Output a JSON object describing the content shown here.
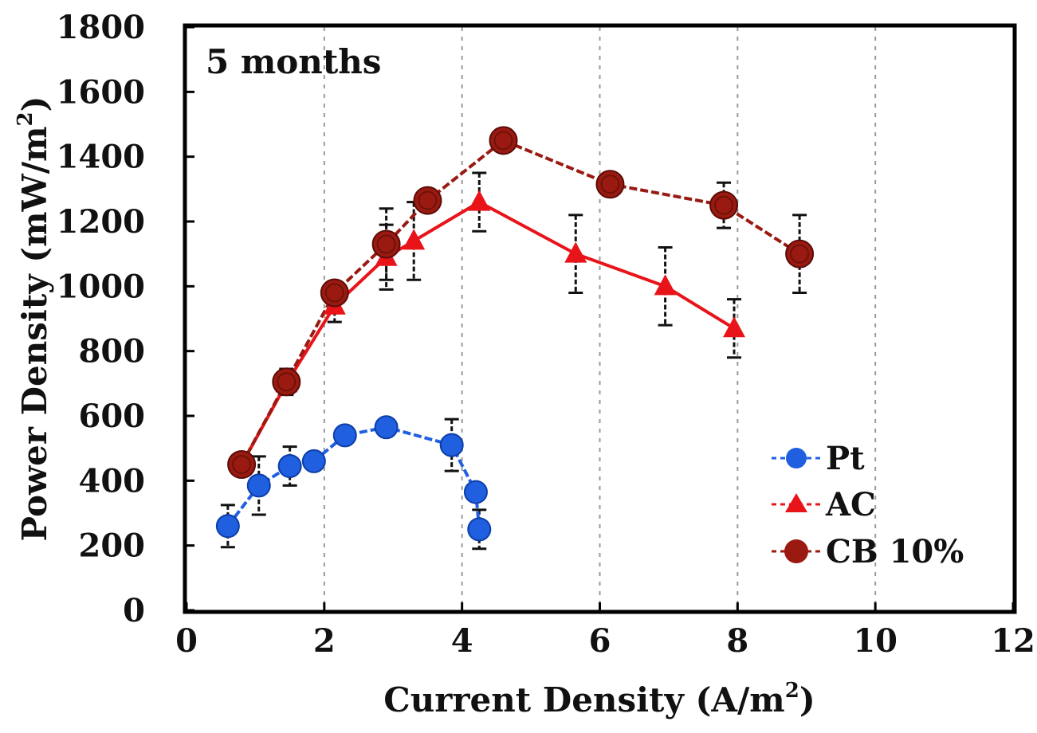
{
  "chart_data": {
    "type": "line",
    "title": "",
    "annotation": "5 months",
    "xlabel": "Current Density (A/m",
    "xlabel_sup": "2",
    "xlabel_end": ")",
    "ylabel": "Power Density (mW/m",
    "ylabel_sup": "2",
    "ylabel_end": ")",
    "xlim": [
      0,
      12
    ],
    "ylim": [
      0,
      1800
    ],
    "xticks": [
      0,
      2,
      4,
      6,
      8,
      10,
      12
    ],
    "yticks": [
      0,
      200,
      400,
      600,
      800,
      1000,
      1200,
      1400,
      1600,
      1800
    ],
    "grid": "vertical dashed",
    "legend_position": "bottom-right",
    "series": [
      {
        "name": "Pt",
        "color": "#1f5fe0",
        "marker": "circle",
        "x": [
          0.6,
          1.05,
          1.5,
          1.85,
          2.3,
          2.9,
          3.85,
          4.2,
          4.25
        ],
        "y": [
          260,
          385,
          445,
          460,
          540,
          565,
          510,
          365,
          250
        ],
        "err": [
          65,
          90,
          60,
          0,
          0,
          0,
          80,
          0,
          60
        ]
      },
      {
        "name": "AC",
        "color": "#e8141a",
        "marker": "triangle",
        "x": [
          0.8,
          1.45,
          2.15,
          2.9,
          3.3,
          4.25,
          5.65,
          6.95,
          7.95
        ],
        "y": [
          450,
          700,
          940,
          1090,
          1140,
          1260,
          1100,
          1000,
          870
        ],
        "err": [
          0,
          0,
          50,
          100,
          120,
          90,
          120,
          120,
          90
        ]
      },
      {
        "name": "CB 10%",
        "color": "#9a1a12",
        "marker": "circle",
        "x": [
          0.8,
          1.45,
          2.15,
          2.9,
          3.5,
          4.6,
          6.15,
          7.8,
          8.9
        ],
        "y": [
          450,
          705,
          980,
          1130,
          1265,
          1450,
          1315,
          1250,
          1100
        ],
        "err": [
          0,
          40,
          0,
          110,
          0,
          0,
          0,
          70,
          120
        ]
      }
    ]
  }
}
